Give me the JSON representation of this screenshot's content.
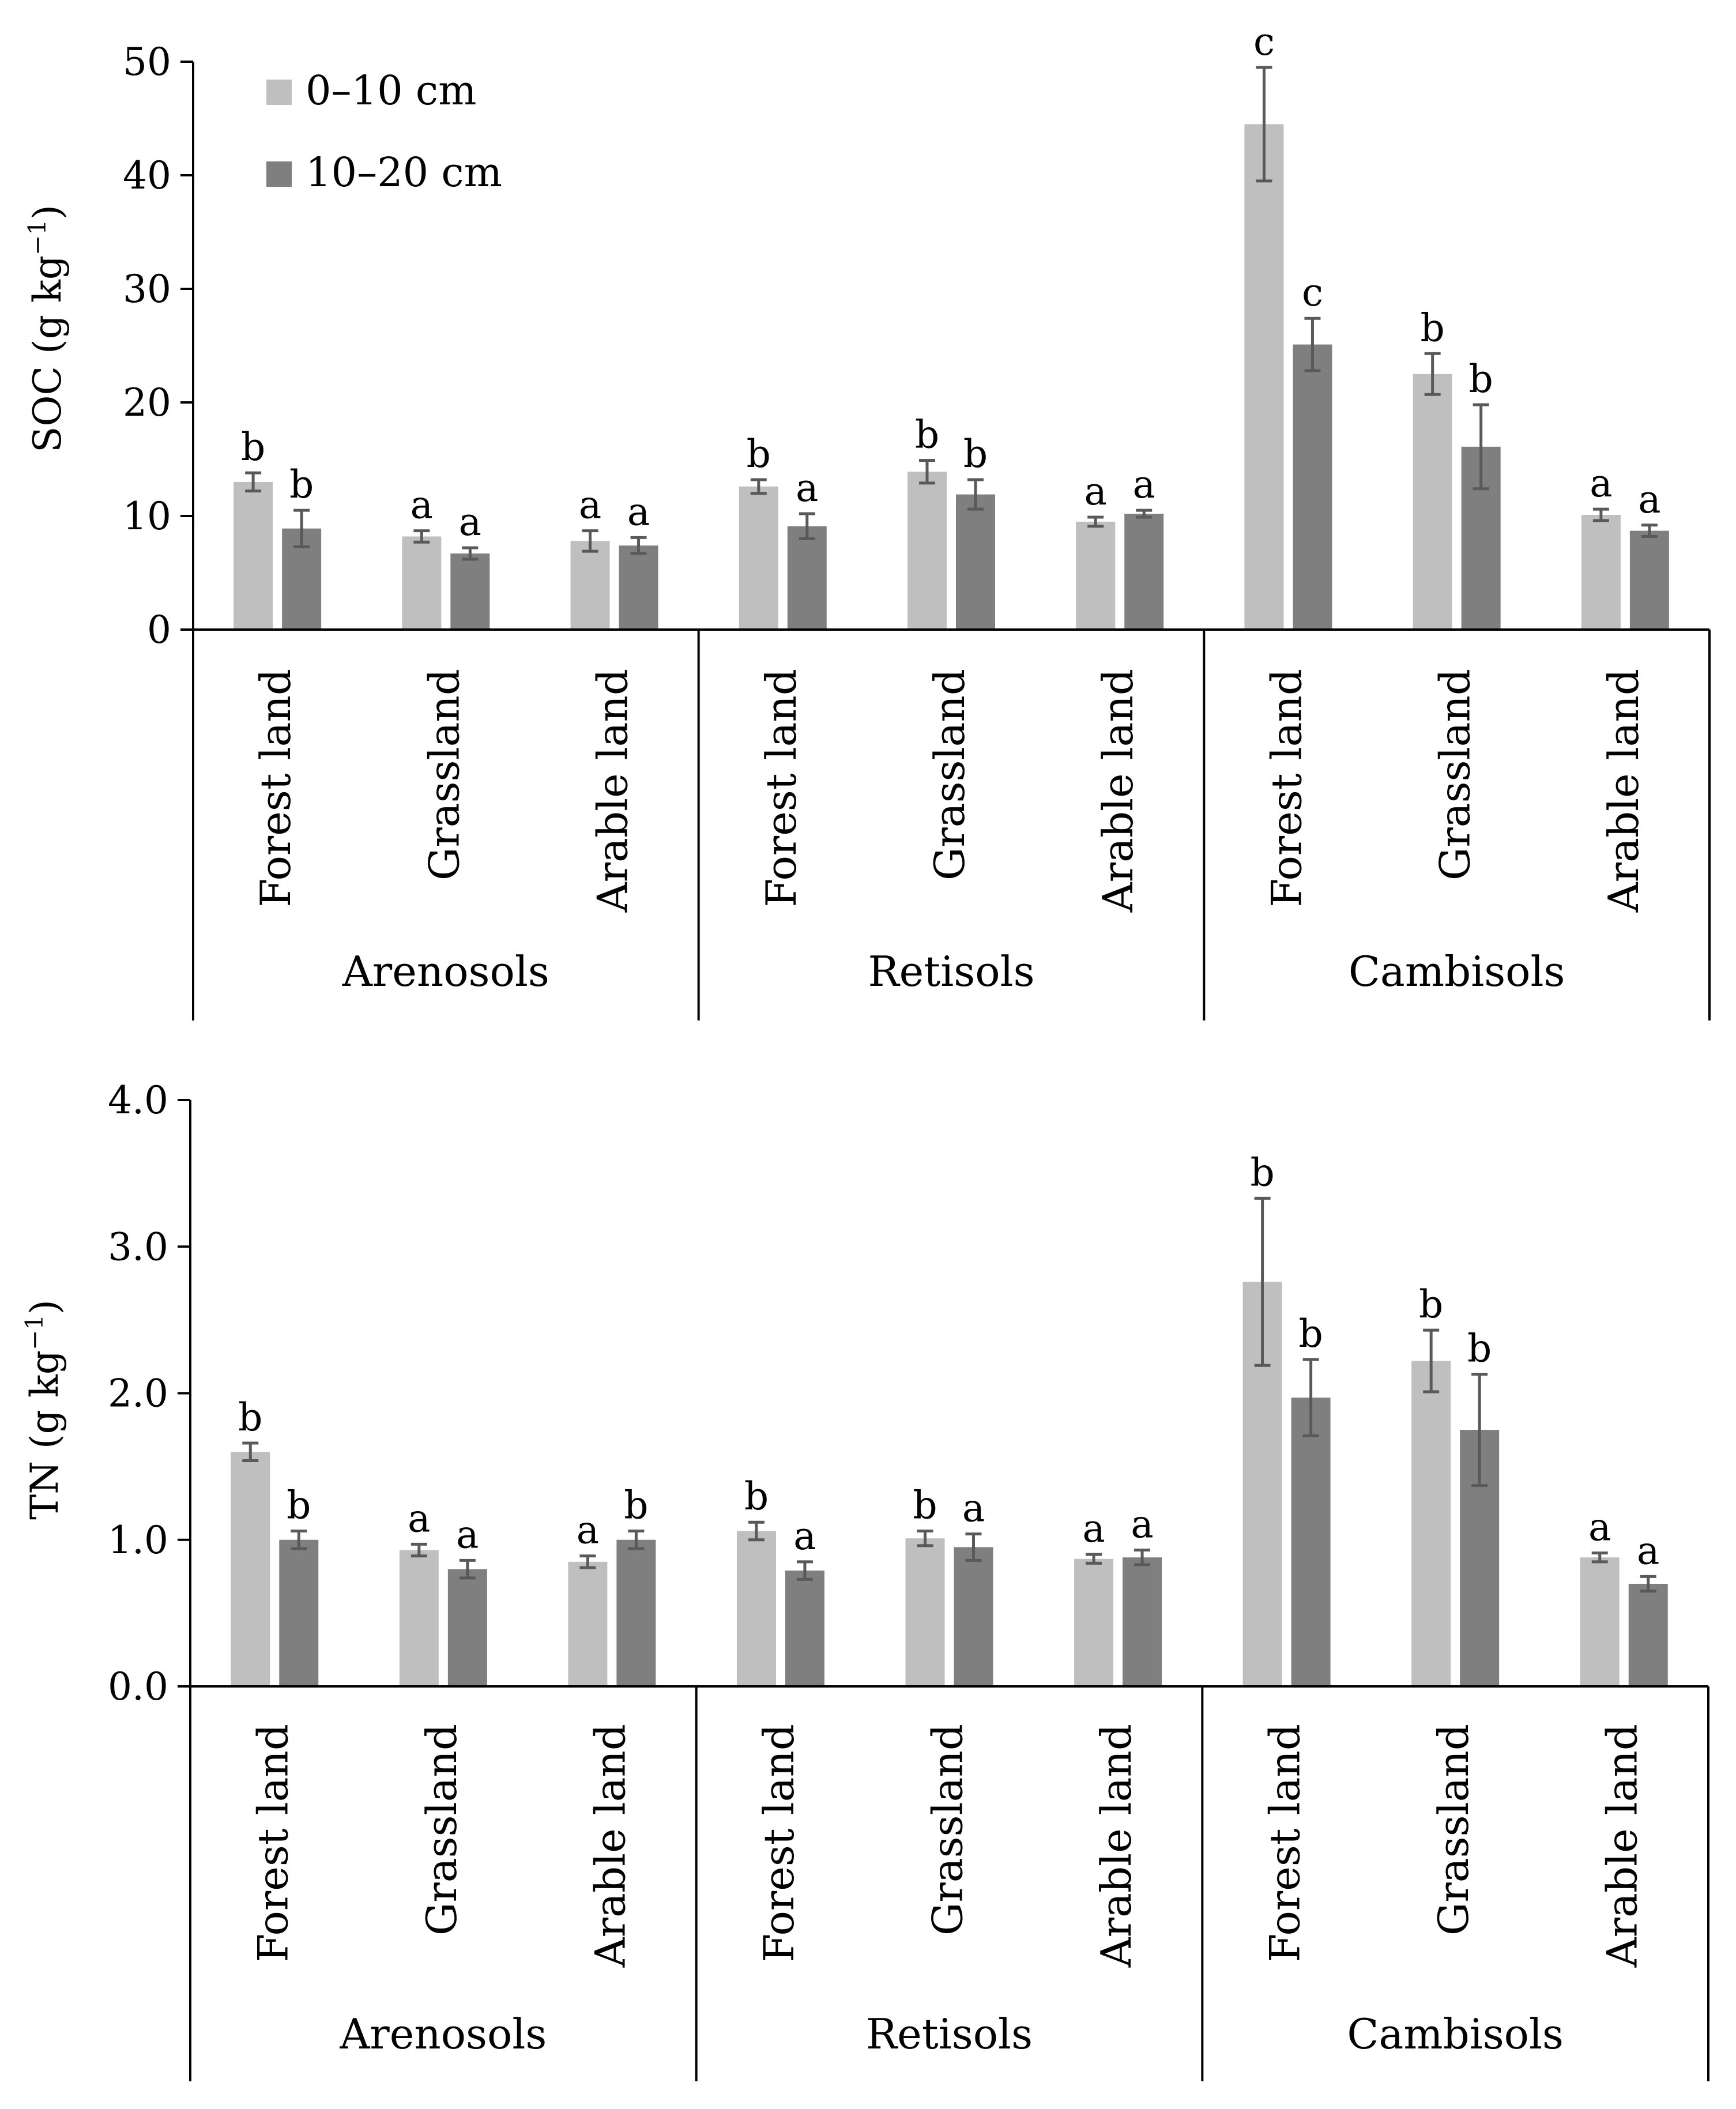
{
  "colors": {
    "depth_0_10": "#bfbfbf",
    "depth_10_20": "#7f7f7f",
    "error_bar": "#595959",
    "axis": "#000000"
  },
  "chart_data": [
    {
      "type": "bar",
      "id": "soc",
      "ylabel_main": "SOC (g kg",
      "ylabel_sup": "−1",
      "ylabel_close": ")",
      "ylim": [
        0,
        50
      ],
      "yticks": [
        0,
        10,
        20,
        30,
        40,
        50
      ],
      "ytick_labels": [
        "0",
        "10",
        "20",
        "30",
        "40",
        "50"
      ],
      "legend": [
        "0–10 cm",
        "10–20 cm"
      ],
      "legend_position": "top-left",
      "groups": [
        "Arenosols",
        "Retisols",
        "Cambisols"
      ],
      "categories": [
        "Forest land",
        "Grassland",
        "Arable land",
        "Forest land",
        "Grassland",
        "Arable land",
        "Forest land",
        "Grassland",
        "Arable land"
      ],
      "series": [
        {
          "name": "0–10 cm",
          "values": [
            13.0,
            8.2,
            7.8,
            12.6,
            13.9,
            9.5,
            44.5,
            22.5,
            10.1
          ],
          "errors": [
            0.8,
            0.5,
            0.9,
            0.6,
            1.0,
            0.4,
            5.0,
            1.8,
            0.5
          ],
          "letters": [
            "b",
            "a",
            "a",
            "b",
            "b",
            "a",
            "c",
            "b",
            "a"
          ]
        },
        {
          "name": "10–20 cm",
          "values": [
            8.9,
            6.7,
            7.4,
            9.1,
            11.9,
            10.2,
            25.1,
            16.1,
            8.7
          ],
          "errors": [
            1.6,
            0.5,
            0.7,
            1.1,
            1.3,
            0.3,
            2.3,
            3.7,
            0.5
          ],
          "letters": [
            "b",
            "a",
            "a",
            "a",
            "b",
            "a",
            "c",
            "b",
            "a"
          ]
        }
      ]
    },
    {
      "type": "bar",
      "id": "tn",
      "ylabel_main": "TN (g kg",
      "ylabel_sup": "−1",
      "ylabel_close": ")",
      "ylim": [
        0,
        4
      ],
      "yticks": [
        0,
        1,
        2,
        3,
        4
      ],
      "ytick_labels": [
        "0.0",
        "1.0",
        "2.0",
        "3.0",
        "4.0"
      ],
      "groups": [
        "Arenosols",
        "Retisols",
        "Cambisols"
      ],
      "categories": [
        "Forest land",
        "Grassland",
        "Arable land",
        "Forest land",
        "Grassland",
        "Arable land",
        "Forest land",
        "Grassland",
        "Arable land"
      ],
      "series": [
        {
          "name": "0–10 cm",
          "values": [
            1.6,
            0.93,
            0.85,
            1.06,
            1.01,
            0.87,
            2.76,
            2.22,
            0.88
          ],
          "errors": [
            0.06,
            0.04,
            0.04,
            0.06,
            0.05,
            0.03,
            0.57,
            0.21,
            0.03
          ],
          "letters": [
            "b",
            "a",
            "a",
            "b",
            "b",
            "a",
            "b",
            "b",
            "a"
          ]
        },
        {
          "name": "10–20 cm",
          "values": [
            1.0,
            0.8,
            1.0,
            0.79,
            0.95,
            0.88,
            1.97,
            1.75,
            0.7
          ],
          "errors": [
            0.06,
            0.06,
            0.06,
            0.06,
            0.09,
            0.05,
            0.26,
            0.38,
            0.05
          ],
          "letters": [
            "b",
            "a",
            "b",
            "a",
            "a",
            "a",
            "b",
            "b",
            "a"
          ]
        }
      ]
    }
  ]
}
